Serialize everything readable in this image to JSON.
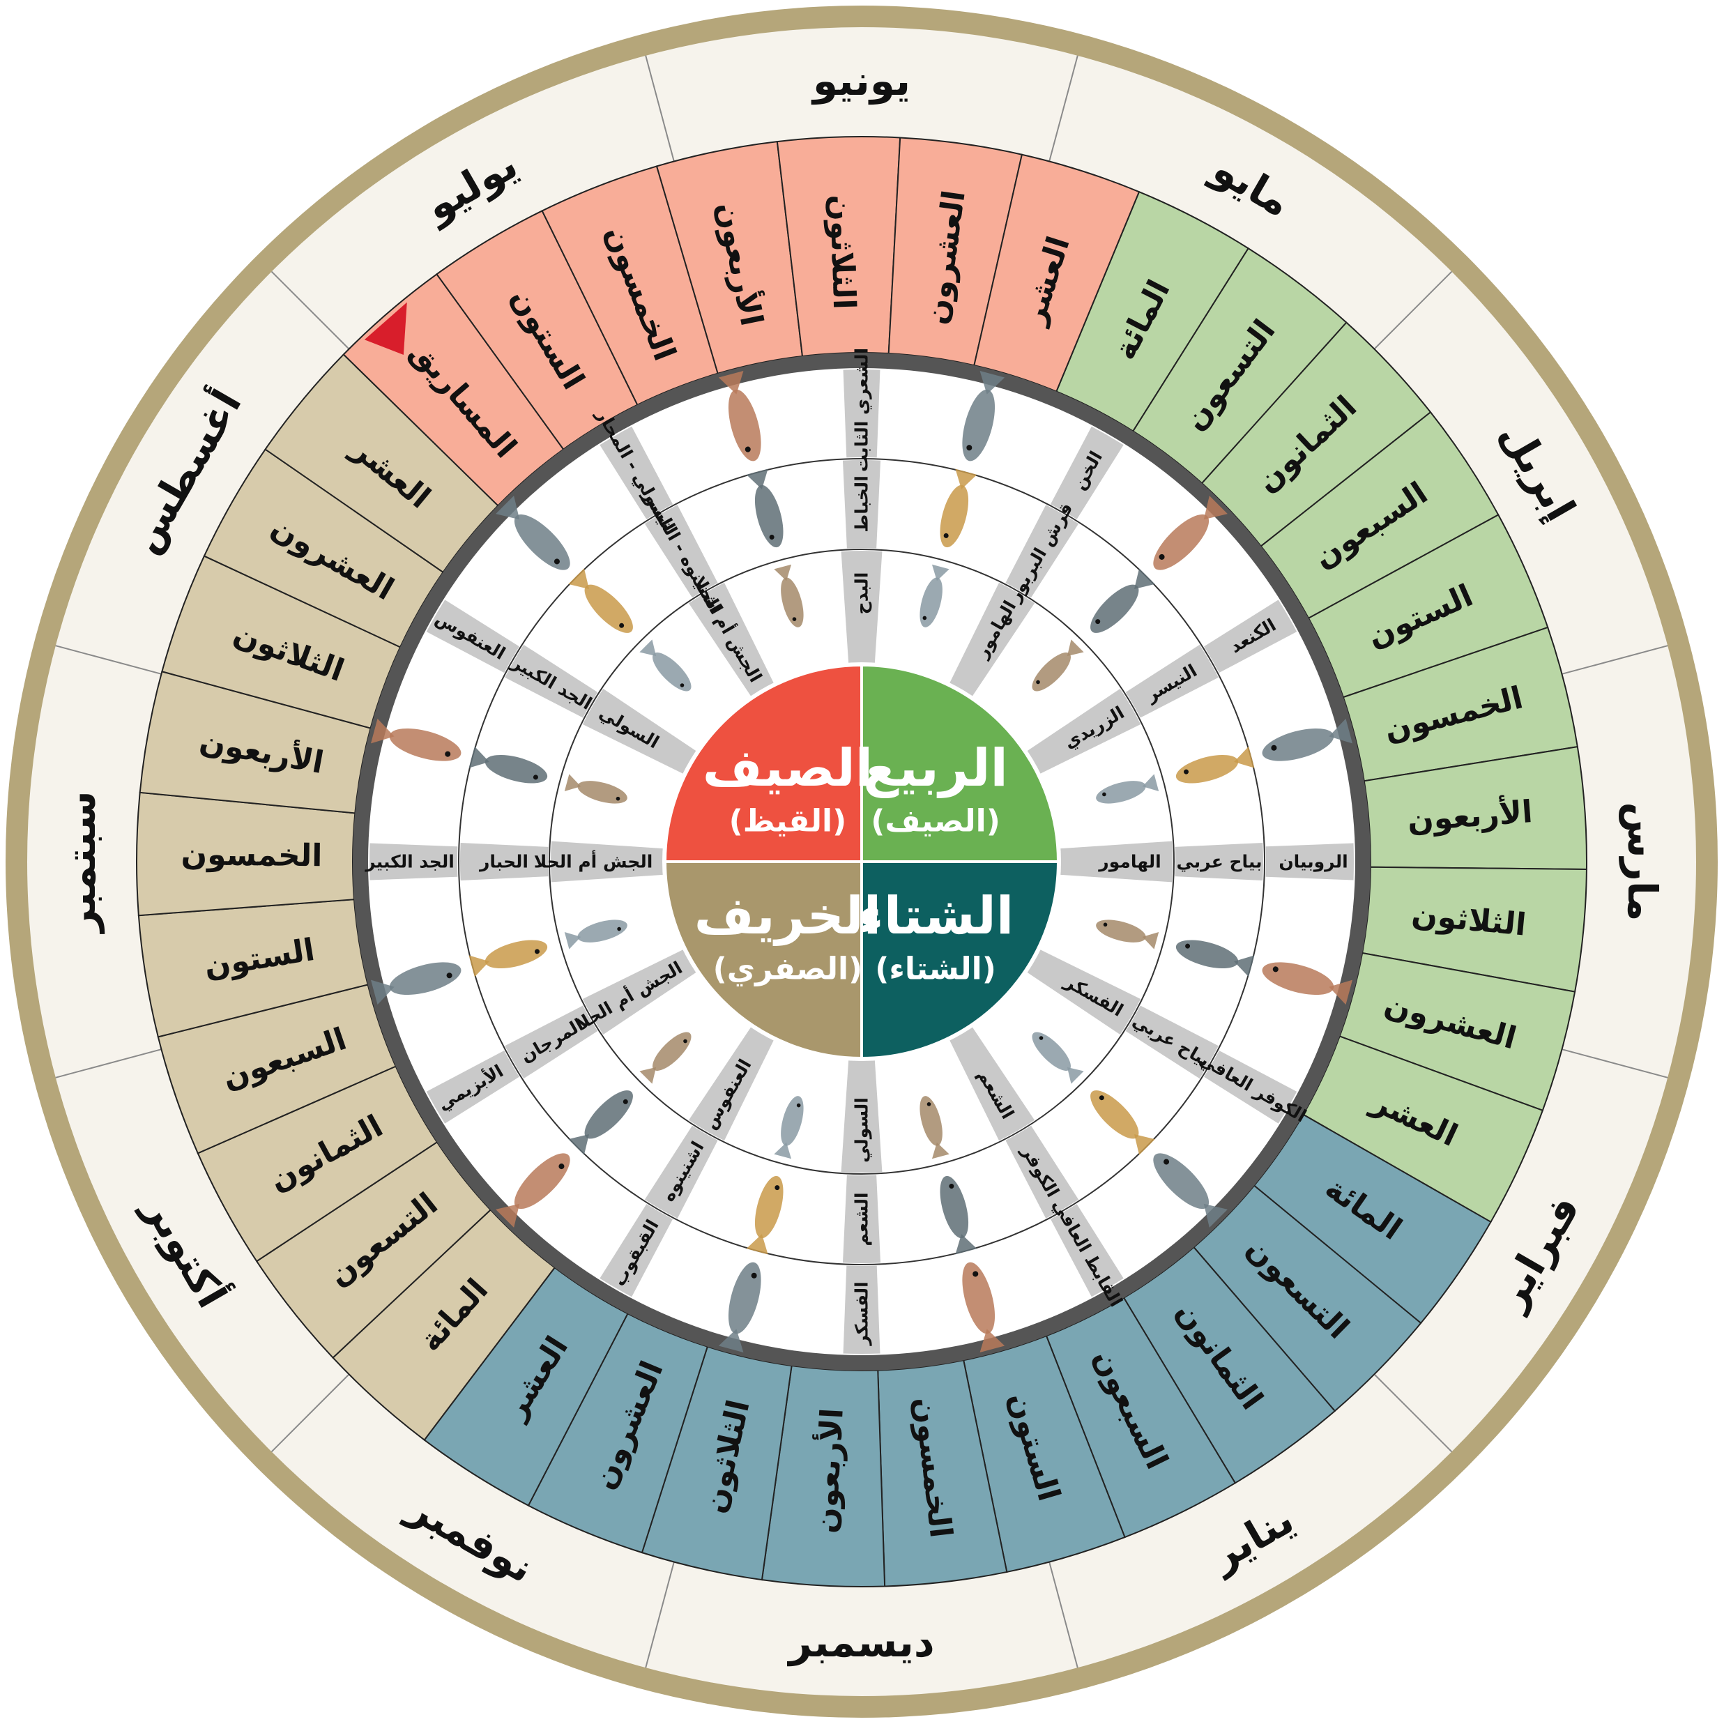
{
  "colors": {
    "frame": "#b5a67a",
    "month_ring": "#f6f3ec",
    "spring": "#b9d6a5",
    "summer": "#f8ad98",
    "autumn": "#d7cbab",
    "winter": "#7aa6b3",
    "divider": "#c9c9c9",
    "pointer": "#d81e2b",
    "hub_spring": "#6ab152",
    "hub_summer": "#ee5140",
    "hub_autumn": "#a9976c",
    "hub_winter": "#0d6060"
  },
  "months": [
    "يونيو",
    "مايو",
    "إبريل",
    "مارس",
    "فبراير",
    "يناير",
    "ديسمبر",
    "نوفمبر",
    "أكتوبر",
    "سبتمبر",
    "أغسطس",
    "يوليو"
  ],
  "periods": [
    {
      "label": "المائة",
      "season": "spring"
    },
    {
      "label": "التسعون",
      "season": "spring"
    },
    {
      "label": "الثمانون",
      "season": "spring"
    },
    {
      "label": "السبعون",
      "season": "spring"
    },
    {
      "label": "الستون",
      "season": "spring"
    },
    {
      "label": "الخمسون",
      "season": "spring"
    },
    {
      "label": "الأربعون",
      "season": "spring"
    },
    {
      "label": "الثلاثون",
      "season": "spring"
    },
    {
      "label": "العشرون",
      "season": "spring"
    },
    {
      "label": "العشر",
      "season": "spring"
    },
    {
      "label": "المائة",
      "season": "winter"
    },
    {
      "label": "التسعون",
      "season": "winter"
    },
    {
      "label": "الثمانون",
      "season": "winter"
    },
    {
      "label": "السبعون",
      "season": "winter"
    },
    {
      "label": "الستون",
      "season": "winter"
    },
    {
      "label": "الخمسون",
      "season": "winter"
    },
    {
      "label": "الأربعون",
      "season": "winter"
    },
    {
      "label": "الثلاثون",
      "season": "winter"
    },
    {
      "label": "العشرون",
      "season": "winter"
    },
    {
      "label": "العشر",
      "season": "winter"
    },
    {
      "label": "المائة",
      "season": "autumn"
    },
    {
      "label": "التسعون",
      "season": "autumn"
    },
    {
      "label": "الثمانون",
      "season": "autumn"
    },
    {
      "label": "السبعون",
      "season": "autumn"
    },
    {
      "label": "الستون",
      "season": "autumn"
    },
    {
      "label": "الخمسون",
      "season": "autumn"
    },
    {
      "label": "الأربعون",
      "season": "autumn"
    },
    {
      "label": "الثلاثون",
      "season": "autumn"
    },
    {
      "label": "العشرون",
      "season": "autumn"
    },
    {
      "label": "العشر",
      "season": "autumn"
    },
    {
      "label": "المساريق",
      "season": "summer"
    },
    {
      "label": "الستون",
      "season": "summer"
    },
    {
      "label": "الخمسون",
      "season": "summer"
    },
    {
      "label": "الأربعون",
      "season": "summer"
    },
    {
      "label": "الثلاثون",
      "season": "summer"
    },
    {
      "label": "العشرون",
      "season": "summer"
    },
    {
      "label": "العشر",
      "season": "summer"
    }
  ],
  "seasons": [
    {
      "key": "spring",
      "name": "الربيع",
      "local": "(الصيف)"
    },
    {
      "key": "winter",
      "name": "الشتاء",
      "local": "(الشتاء)"
    },
    {
      "key": "autumn",
      "name": "الخريف",
      "local": "(الصفري)"
    },
    {
      "key": "summer",
      "name": "الصيف",
      "local": "(القيظ)"
    }
  ],
  "fish_labels": [
    "الشعري الثابت",
    "الخباط",
    "البدح",
    "الخن",
    "قرش البربور",
    "الهامور",
    "الكنعد",
    "النيسر",
    "الزريدي",
    "الروبيان",
    "بياح عربي",
    "الهامور",
    "الكوفر العافي",
    "بياح عربي",
    "الفسكر",
    "القابط العافي",
    "الكوفر",
    "الشعم",
    "الفسكر",
    "الشعم",
    "السولي",
    "القبقوب",
    "اشنينوه",
    "العنفوس",
    "الأبزيمي",
    "المرجان",
    "الجش أم الحلا",
    "الجد الكبير",
    "الحبار",
    "الجش أم الحلا",
    "العنفوس",
    "الجد الكبير",
    "السولي",
    "السولي - المحار",
    "اشنينوه - النيسر",
    "الجش أم الحلا"
  ]
}
